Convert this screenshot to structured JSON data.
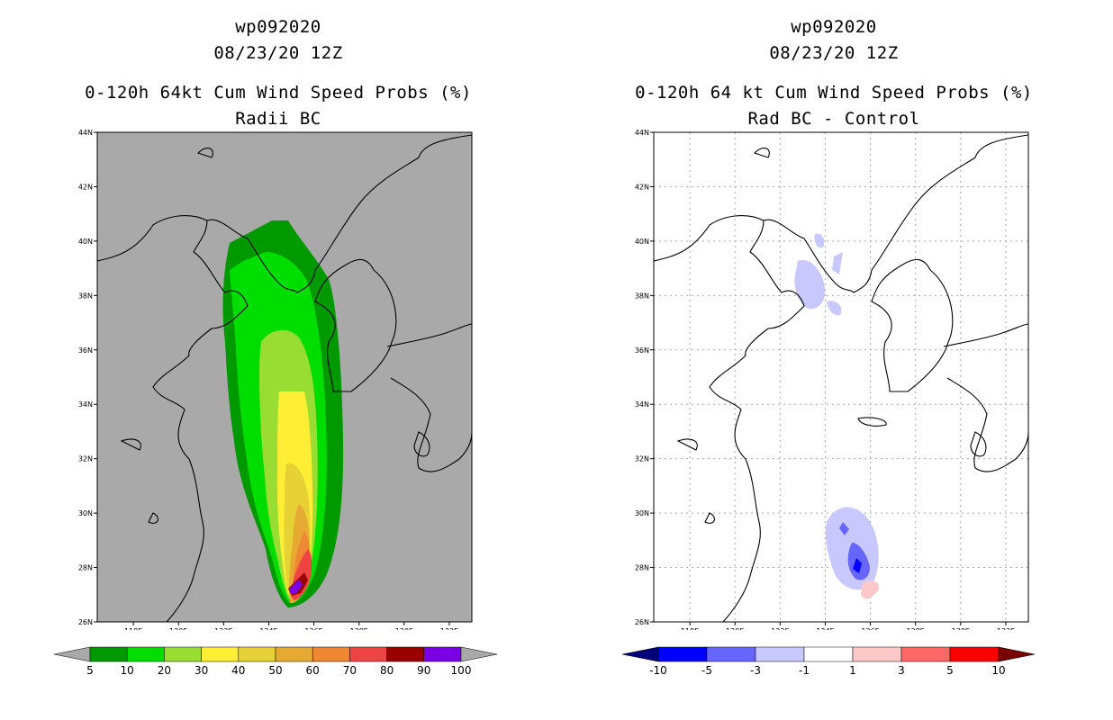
{
  "left": {
    "storm": "wp092020",
    "time": "08/23/20 12Z",
    "product": "0-120h 64kt Cum Wind Speed Probs (%)",
    "subtitle": "Radii BC",
    "colors": {
      "ocean": "#a9a9a9",
      "land": "#a9a9a9"
    },
    "contour_levels": [
      5,
      10,
      20,
      30,
      40,
      50,
      60,
      70,
      80,
      90
    ],
    "contour_colors": [
      "#009900",
      "#00dd00",
      "#99dd33",
      "#ffee33",
      "#e6d234",
      "#e6aa33",
      "#ee8833",
      "#ee4444",
      "#9b0000",
      "#7a00e6"
    ],
    "colorbar": {
      "labels": [
        "5",
        "10",
        "20",
        "30",
        "40",
        "50",
        "60",
        "70",
        "80",
        "90",
        "100"
      ],
      "colors": [
        "#009900",
        "#00dd00",
        "#99dd33",
        "#ffee33",
        "#e6d234",
        "#e6aa33",
        "#ee8833",
        "#ee4444",
        "#9b0000",
        "#7a00e6"
      ],
      "under_color": "#a9a9a9",
      "over_color": "#a9a9a9"
    }
  },
  "right": {
    "storm": "wp092020",
    "time": "08/23/20 12Z",
    "product": "0-120h 64 kt Cum Wind Speed Probs (%)",
    "subtitle": "Rad BC - Control",
    "colorbar": {
      "labels": [
        "-10",
        "-5",
        "-3",
        "-1",
        "1",
        "3",
        "5",
        "10"
      ],
      "colors": [
        "#0000ff",
        "#6666ff",
        "#c8c8ff",
        "#ffffff",
        "#ffc8c8",
        "#ff6666",
        "#ff0000"
      ],
      "under_color": "#00007a",
      "over_color": "#7a0000"
    }
  },
  "axes": {
    "lat_labels": [
      "26N",
      "28N",
      "30N",
      "32N",
      "34N",
      "36N",
      "38N",
      "40N",
      "42N",
      "44N"
    ],
    "lon_labels": [
      "118E",
      "120E",
      "122E",
      "124E",
      "126E",
      "128E",
      "130E",
      "132E"
    ]
  }
}
